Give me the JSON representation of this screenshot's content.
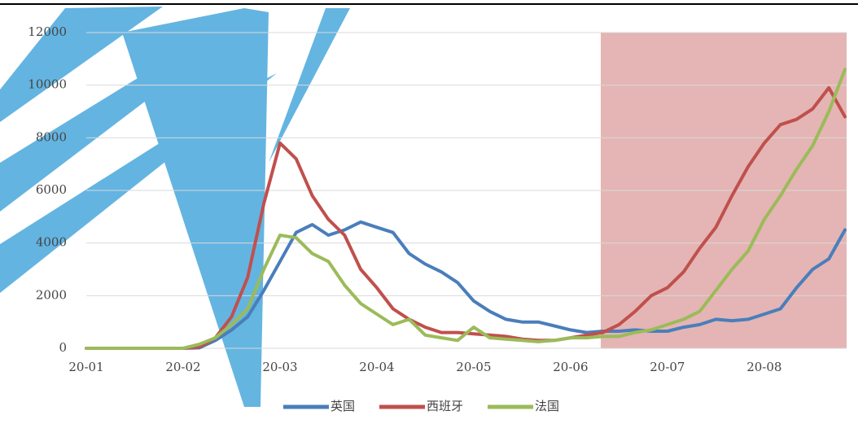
{
  "chart_data": {
    "type": "line",
    "categories": [
      "20-01",
      null,
      null,
      null,
      null,
      null,
      "20-02",
      null,
      null,
      null,
      null,
      null,
      "20-03",
      null,
      null,
      null,
      null,
      null,
      "20-04",
      null,
      null,
      null,
      null,
      null,
      "20-05",
      null,
      null,
      null,
      null,
      null,
      "20-06",
      null,
      null,
      null,
      null,
      null,
      "20-07",
      null,
      null,
      null,
      null,
      null,
      "20-08",
      null,
      null,
      null,
      null,
      null
    ],
    "series": [
      {
        "name": "英国",
        "color": "#4a7ebb",
        "values": [
          0,
          0,
          0,
          0,
          0,
          0,
          0,
          20,
          300,
          700,
          1200,
          2200,
          3300,
          4400,
          4700,
          4300,
          4500,
          4800,
          4600,
          4400,
          3600,
          3200,
          2900,
          2500,
          1800,
          1400,
          1100,
          1000,
          1000,
          850,
          700,
          600,
          650,
          650,
          700,
          650,
          650,
          800,
          900,
          1100,
          1050,
          1100,
          1300,
          1500,
          2300,
          3000,
          3400,
          4500
        ]
      },
      {
        "name": "西班牙",
        "color": "#c0504d",
        "values": [
          0,
          0,
          0,
          0,
          0,
          0,
          0,
          50,
          400,
          1200,
          2700,
          5500,
          7800,
          7200,
          5800,
          4900,
          4300,
          3000,
          2300,
          1500,
          1100,
          800,
          600,
          600,
          550,
          500,
          450,
          350,
          300,
          300,
          400,
          500,
          600,
          900,
          1400,
          2000,
          2300,
          2900,
          3800,
          4600,
          5800,
          6900,
          7800,
          8500,
          8700,
          9100,
          9900,
          8800
        ]
      },
      {
        "name": "法国",
        "color": "#9bbb59",
        "values": [
          0,
          0,
          0,
          0,
          0,
          0,
          0,
          150,
          400,
          900,
          1500,
          3000,
          4300,
          4200,
          3600,
          3300,
          2400,
          1700,
          1300,
          900,
          1100,
          500,
          400,
          300,
          800,
          400,
          350,
          300,
          250,
          300,
          400,
          400,
          450,
          450,
          600,
          700,
          900,
          1100,
          1400,
          2200,
          3000,
          3700,
          4900,
          5800,
          6800,
          7700,
          9000,
          10600
        ]
      }
    ],
    "ylim": [
      0,
      12000
    ],
    "yticks": [
      0,
      2000,
      4000,
      6000,
      8000,
      10000,
      12000
    ],
    "grid": true,
    "legend": "bottom"
  }
}
